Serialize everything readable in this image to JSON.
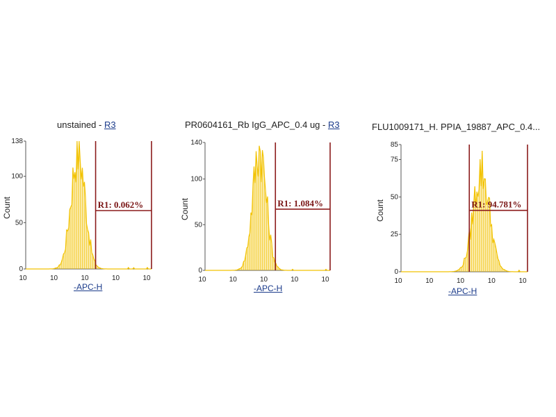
{
  "chart_data": [
    {
      "type": "histogram",
      "title_main": "unstained - ",
      "title_gate": "R3",
      "xlabel": "-APC-H",
      "ylabel": "Count",
      "x_scale": "log",
      "xlim": [
        1,
        100000
      ],
      "x_ticks": [
        "10",
        "10",
        "10",
        "10",
        "10"
      ],
      "ylim": [
        0,
        138
      ],
      "y_ticks": [
        {
          "value": 0,
          "label": "0"
        },
        {
          "value": 50,
          "label": "50"
        },
        {
          "value": 100,
          "label": "100"
        },
        {
          "value": 138,
          "label": "138"
        }
      ],
      "gate": {
        "label": "R1: 0.062%",
        "x_start": 600,
        "x_end": 100000,
        "y_level": 63
      },
      "histogram": {
        "peak_x": 120,
        "peak_y": 132,
        "spread": 0.28,
        "color": "#f2c200"
      }
    },
    {
      "type": "histogram",
      "title_main": "PR0604161_Rb IgG_APC_0.4 ug - ",
      "title_gate": "R3",
      "xlabel": "-APC-H",
      "ylabel": "Count",
      "x_scale": "log",
      "xlim": [
        1,
        100000
      ],
      "x_ticks": [
        "10",
        "10",
        "10",
        "10",
        "10"
      ],
      "ylim": [
        0,
        140
      ],
      "y_ticks": [
        {
          "value": 0,
          "label": "0"
        },
        {
          "value": 50,
          "label": "50"
        },
        {
          "value": 100,
          "label": "100"
        },
        {
          "value": 140,
          "label": "140"
        }
      ],
      "gate": {
        "label": "R1: 1.084%",
        "x_start": 650,
        "x_end": 100000,
        "y_level": 67
      },
      "histogram": {
        "peak_x": 150,
        "peak_y": 138,
        "spread": 0.27,
        "color": "#f2c200"
      }
    },
    {
      "type": "histogram",
      "title_main": "FLU1009171_H. PPIA_19887_APC_0.4...",
      "title_gate": "",
      "xlabel": "-APC-H",
      "ylabel": "Count",
      "x_scale": "log",
      "xlim": [
        1,
        100000
      ],
      "x_ticks": [
        "10",
        "10",
        "10",
        "10",
        "10"
      ],
      "ylim": [
        0,
        85
      ],
      "y_ticks": [
        {
          "value": 0,
          "label": "0"
        },
        {
          "value": 25,
          "label": "25"
        },
        {
          "value": 50,
          "label": "50"
        },
        {
          "value": 75,
          "label": "75"
        },
        {
          "value": 85,
          "label": "85"
        }
      ],
      "gate": {
        "label": "R1: 94.781%",
        "x_start": 500,
        "x_end": 100000,
        "y_level": 41
      },
      "histogram": {
        "peak_x": 1500,
        "peak_y": 70,
        "spread": 0.32,
        "color": "#f2c200"
      }
    }
  ],
  "colors": {
    "gate": "#8b1a1a",
    "histogram": "#f2c200",
    "axis": "#555555"
  }
}
